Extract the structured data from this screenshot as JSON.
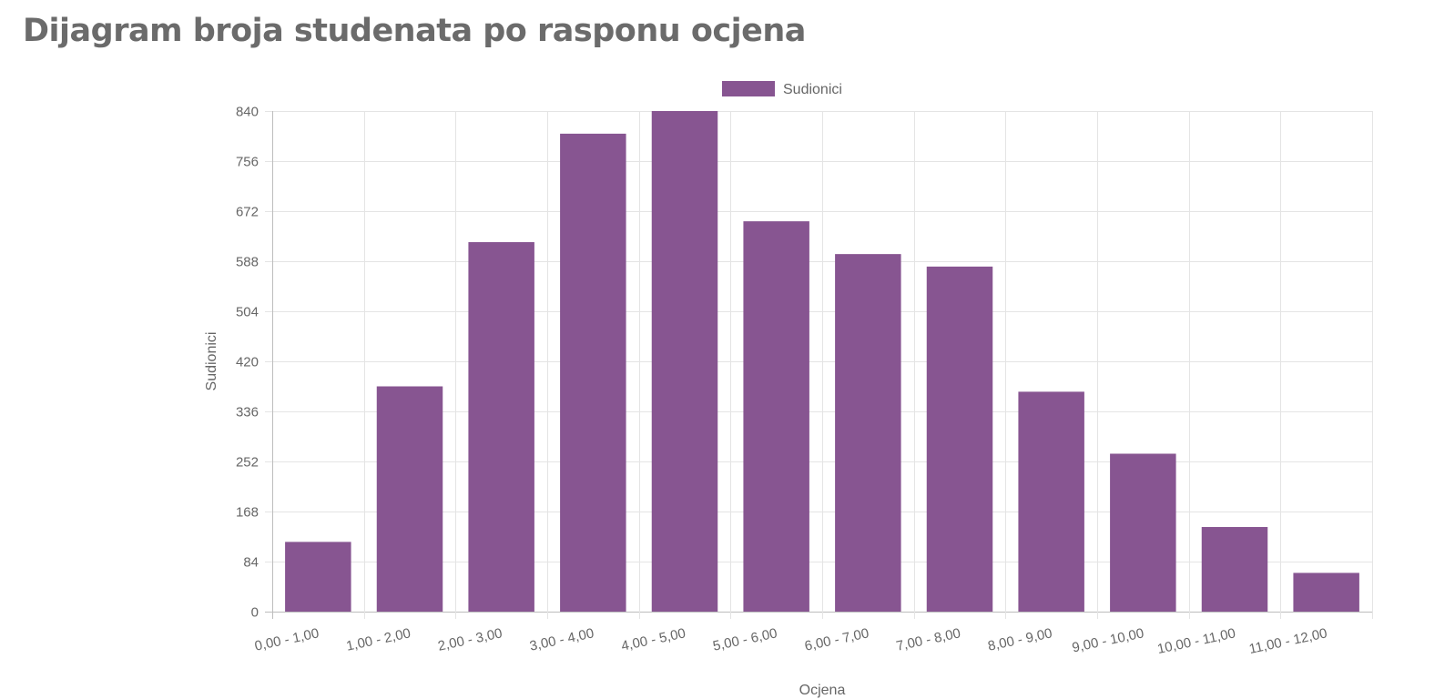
{
  "page": {
    "title": "Dijagram broja studenata po rasponu ocjena"
  },
  "chart_data": {
    "type": "bar",
    "ylabel": "Sudionici",
    "xlabel": "Ocjena",
    "ylim": [
      0,
      840
    ],
    "yticks": [
      0,
      84,
      168,
      252,
      336,
      420,
      504,
      588,
      672,
      756,
      840
    ],
    "categories": [
      "0,00 - 1,00",
      "1,00 - 2,00",
      "2,00 - 3,00",
      "3,00 - 4,00",
      "4,00 - 5,00",
      "5,00 - 6,00",
      "6,00 - 7,00",
      "7,00 - 8,00",
      "8,00 - 9,00",
      "9,00 - 10,00",
      "10,00 - 11,00",
      "11,00 - 12,00"
    ],
    "series": [
      {
        "name": "Sudionici",
        "color": "#875591",
        "values": [
          117,
          378,
          620,
          802,
          840,
          655,
          600,
          579,
          369,
          265,
          142,
          65
        ]
      }
    ],
    "legend": "top",
    "grid": true
  }
}
